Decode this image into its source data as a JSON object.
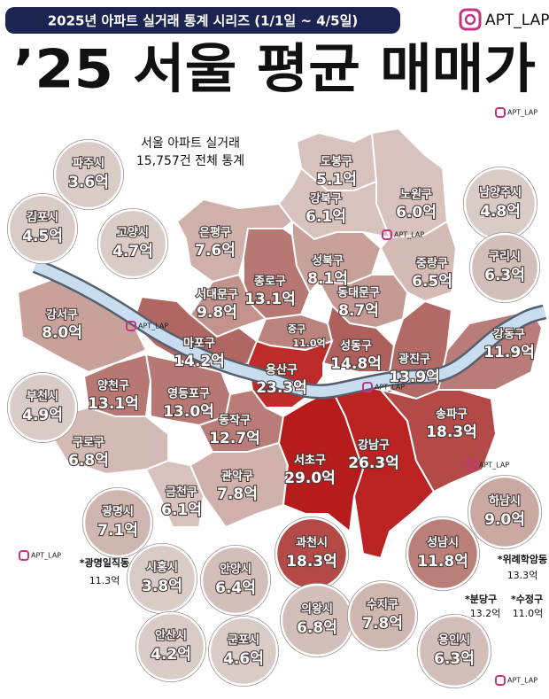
{
  "header": {
    "title": "2025년 아파트 실거래 통계 시리즈 (1/1일 ~ 4/5일)",
    "account": "APT_LAP"
  },
  "title": "’25 서울 평균 매매가",
  "subtitle": [
    "서울 아파트 실거래",
    "15,757건 전체 통계"
  ],
  "districts": [
    {
      "name": "도봉구",
      "value": "5.1억",
      "color": "#d7c2bd"
    },
    {
      "name": "노원구",
      "value": "6.0억",
      "color": "#d7c2bd"
    },
    {
      "name": "강북구",
      "value": "6.1억",
      "color": "#d7c2bd"
    },
    {
      "name": "은평구",
      "value": "7.6억",
      "color": "#cfb0aa"
    },
    {
      "name": "종로구",
      "value": "13.1억",
      "color": "#b77874"
    },
    {
      "name": "성북구",
      "value": "8.1억",
      "color": "#c9a19b"
    },
    {
      "name": "중랑구",
      "value": "6.5억",
      "color": "#d3bab5"
    },
    {
      "name": "동대문구",
      "value": "8.7억",
      "color": "#c69a94"
    },
    {
      "name": "서대문구",
      "value": "9.8억",
      "color": "#c3928c"
    },
    {
      "name": "마포구",
      "value": "14.2억",
      "color": "#b06662"
    },
    {
      "name": "중구",
      "value": "11.0억",
      "color": "#bb837e"
    },
    {
      "name": "성동구",
      "value": "14.8억",
      "color": "#ad605c"
    },
    {
      "name": "광진구",
      "value": "13.9억",
      "color": "#b16a66"
    },
    {
      "name": "강동구",
      "value": "11.9억",
      "color": "#b97c78"
    },
    {
      "name": "용산구",
      "value": "23.3억",
      "color": "#bf2a2a"
    },
    {
      "name": "강서구",
      "value": "8.0억",
      "color": "#c9a19b"
    },
    {
      "name": "양천구",
      "value": "13.1억",
      "color": "#b77874"
    },
    {
      "name": "영등포구",
      "value": "13.0억",
      "color": "#b77874"
    },
    {
      "name": "구로구",
      "value": "6.8억",
      "color": "#d3bab5"
    },
    {
      "name": "동작구",
      "value": "12.7억",
      "color": "#b97c78"
    },
    {
      "name": "금천구",
      "value": "6.1억",
      "color": "#d7c2bd"
    },
    {
      "name": "관악구",
      "value": "7.8억",
      "color": "#cfb0aa"
    },
    {
      "name": "서초구",
      "value": "29.0억",
      "color": "#b61c1c"
    },
    {
      "name": "강남구",
      "value": "26.3억",
      "color": "#bb2222"
    },
    {
      "name": "송파구",
      "value": "18.3억",
      "color": "#b44a48"
    }
  ],
  "cities": [
    {
      "name": "파주시",
      "value": "3.6억",
      "color": "#d9cbc6"
    },
    {
      "name": "김포시",
      "value": "4.5억",
      "color": "#d9cbc6"
    },
    {
      "name": "고양시",
      "value": "4.7억",
      "color": "#d9cbc6"
    },
    {
      "name": "남양주시",
      "value": "4.8억",
      "color": "#d9cbc6"
    },
    {
      "name": "구리시",
      "value": "6.3억",
      "color": "#d3bfba"
    },
    {
      "name": "부천시",
      "value": "4.9억",
      "color": "#d9cbc6"
    },
    {
      "name": "하남시",
      "value": "9.0억",
      "color": "#caa9a3"
    },
    {
      "name": "광명시",
      "value": "7.1억",
      "color": "#cfb6b0"
    },
    {
      "name": "과천시",
      "value": "18.3억",
      "color": "#b44a48"
    },
    {
      "name": "성남시",
      "value": "11.8억",
      "color": "#bb7f7a"
    },
    {
      "name": "시흥시",
      "value": "3.8억",
      "color": "#d9cbc6"
    },
    {
      "name": "안양시",
      "value": "6.4억",
      "color": "#d3bfba"
    },
    {
      "name": "의왕시",
      "value": "6.8억",
      "color": "#d3bfba"
    },
    {
      "name": "수지구",
      "value": "7.8억",
      "color": "#cfb6b0"
    },
    {
      "name": "안산시",
      "value": "4.2억",
      "color": "#d9cbc6"
    },
    {
      "name": "군포시",
      "value": "4.6억",
      "color": "#d9cbc6"
    },
    {
      "name": "용인시",
      "value": "6.3억",
      "color": "#d3bfba"
    }
  ],
  "notes": [
    {
      "name": "*광명일직동",
      "value": "11.3억"
    },
    {
      "name": "*위례학암동",
      "value": "13.3억"
    },
    {
      "name": "*분당구",
      "value": "13.2억"
    },
    {
      "name": "*수정구",
      "value": "11.0억"
    }
  ],
  "watermarks": [
    "APT_LAP",
    "APT_LAP",
    "APT_LAP",
    "APT_LAP",
    "APT_LAP",
    "APT_LAP",
    "APT_LAP"
  ]
}
